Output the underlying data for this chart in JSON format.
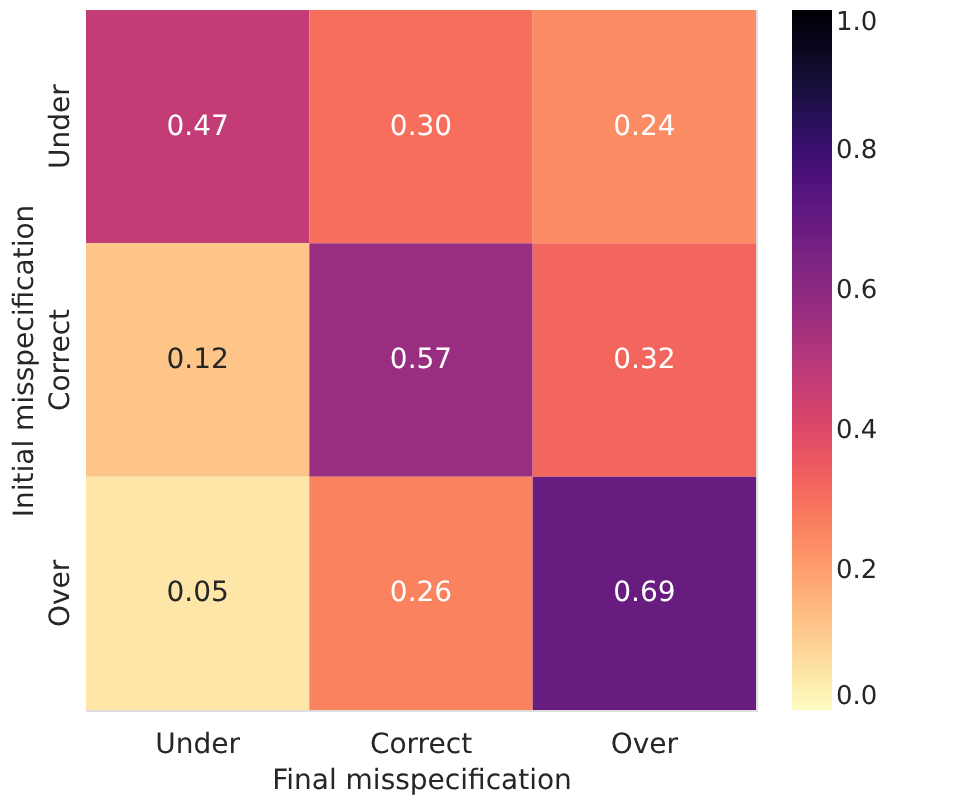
{
  "chart_data": {
    "type": "heatmap",
    "xlabel": "Final misspecification",
    "ylabel": "Initial misspecification",
    "categories": [
      "Under",
      "Correct",
      "Over"
    ],
    "y_categories": [
      "Under",
      "Correct",
      "Over"
    ],
    "cells": [
      [
        0.47,
        0.3,
        0.24
      ],
      [
        0.12,
        0.57,
        0.32
      ],
      [
        0.05,
        0.26,
        0.69
      ]
    ],
    "cell_labels": [
      [
        "0.47",
        "0.30",
        "0.24"
      ],
      [
        "0.12",
        "0.57",
        "0.32"
      ],
      [
        "0.05",
        "0.26",
        "0.69"
      ]
    ],
    "clim": [
      0.0,
      1.0
    ],
    "cticks": [
      {
        "value": 0.0,
        "label": "0.0"
      },
      {
        "value": 0.2,
        "label": "0.2"
      },
      {
        "value": 0.4,
        "label": "0.4"
      },
      {
        "value": 0.6,
        "label": "0.6"
      },
      {
        "value": 0.8,
        "label": "0.8"
      },
      {
        "value": 1.0,
        "label": "1.0"
      }
    ]
  }
}
